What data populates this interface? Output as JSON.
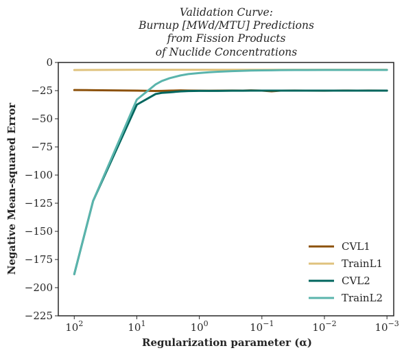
{
  "chart_data": {
    "type": "line",
    "title_lines": [
      "Validation Curve:",
      "Burnup [MWd/MTU] Predictions",
      "from Fission Products",
      "of Nuclide Concentrations"
    ],
    "xlabel": "Regularization parameter (α)",
    "ylabel": "Negative Mean-squared Error",
    "x_scale": "log",
    "x_reversed": true,
    "xlim": [
      180,
      0.00078
    ],
    "ylim": [
      -225,
      0
    ],
    "y_ticks": [
      0,
      -25,
      -50,
      -75,
      -100,
      -125,
      -150,
      -175,
      -200,
      -225
    ],
    "y_tick_labels": [
      "0",
      "−25",
      "−50",
      "−75",
      "−100",
      "−125",
      "−150",
      "−175",
      "−200",
      "−225"
    ],
    "x_ticks": [
      {
        "value": 100,
        "base": "10",
        "exp": "2"
      },
      {
        "value": 10,
        "base": "10",
        "exp": "1"
      },
      {
        "value": 1,
        "base": "10",
        "exp": "0"
      },
      {
        "value": 0.1,
        "base": "10",
        "exp": "−1"
      },
      {
        "value": 0.01,
        "base": "10",
        "exp": "−2"
      },
      {
        "value": 0.001,
        "base": "10",
        "exp": "−3"
      }
    ],
    "x": [
      100,
      50,
      10,
      5,
      4,
      3,
      2,
      1.5,
      1,
      0.7,
      0.5,
      0.3,
      0.2,
      0.15,
      0.1,
      0.07,
      0.05,
      0.03,
      0.02,
      0.01,
      0.005,
      0.003,
      0.002,
      0.001
    ],
    "series": [
      {
        "name": "CVL1",
        "color": "#8c510a",
        "values": [
          -24.5,
          -24.6,
          -25.0,
          -25.3,
          -25.2,
          -25.0,
          -24.8,
          -24.9,
          -25.0,
          -25.1,
          -25.0,
          -24.9,
          -25.0,
          -24.8,
          -25.0,
          -25.6,
          -25.0,
          -24.9,
          -25.0,
          -25.1,
          -24.9,
          -25.0,
          -24.9,
          -25.0
        ]
      },
      {
        "name": "TrainL1",
        "color": "#dfc27d",
        "values": [
          -6.7,
          -6.6,
          -6.5,
          -6.5,
          -6.5,
          -6.5,
          -6.5,
          -6.5,
          -6.5,
          -6.5,
          -6.5,
          -6.5,
          -6.5,
          -6.5,
          -6.5,
          -6.5,
          -6.5,
          -6.5,
          -6.5,
          -6.5,
          -6.5,
          -6.5,
          -6.5,
          -6.5
        ]
      },
      {
        "name": "CVL2",
        "color": "#01665e",
        "values": [
          -188,
          -123,
          -37.5,
          -28.0,
          -27.0,
          -26.5,
          -25.7,
          -25.4,
          -25.2,
          -25.2,
          -25.2,
          -25.1,
          -25.1,
          -25.0,
          -25.0,
          -25.0,
          -25.0,
          -25.0,
          -25.0,
          -25.0,
          -25.0,
          -25.0,
          -25.0,
          -25.0
        ]
      },
      {
        "name": "TrainL2",
        "color": "#5ab4ac",
        "values": [
          -188,
          -123,
          -33.0,
          -19.5,
          -16.5,
          -14.0,
          -11.5,
          -10.3,
          -9.4,
          -8.7,
          -8.2,
          -7.7,
          -7.4,
          -7.2,
          -7.0,
          -6.9,
          -6.8,
          -6.7,
          -6.7,
          -6.6,
          -6.6,
          -6.6,
          -6.6,
          -6.6
        ]
      }
    ],
    "grid": false,
    "legend_position": "lower-right"
  }
}
